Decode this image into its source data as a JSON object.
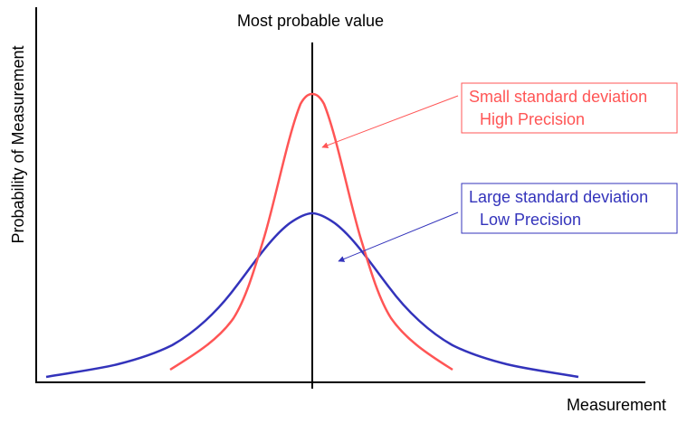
{
  "diagram": {
    "top_label": "Most probable value",
    "ylabel": "Probability of Measurement",
    "xlabel": "Measurement",
    "colors": {
      "axis": "#000000",
      "narrow": "#ff5555",
      "wide": "#3333bb"
    },
    "curves": [
      {
        "name": "narrow",
        "std_label_line1": "Small standard deviation",
        "std_label_line2": "High Precision"
      },
      {
        "name": "wide",
        "std_label_line1": "Large standard deviation",
        "std_label_line2": "Low Precision"
      }
    ]
  }
}
